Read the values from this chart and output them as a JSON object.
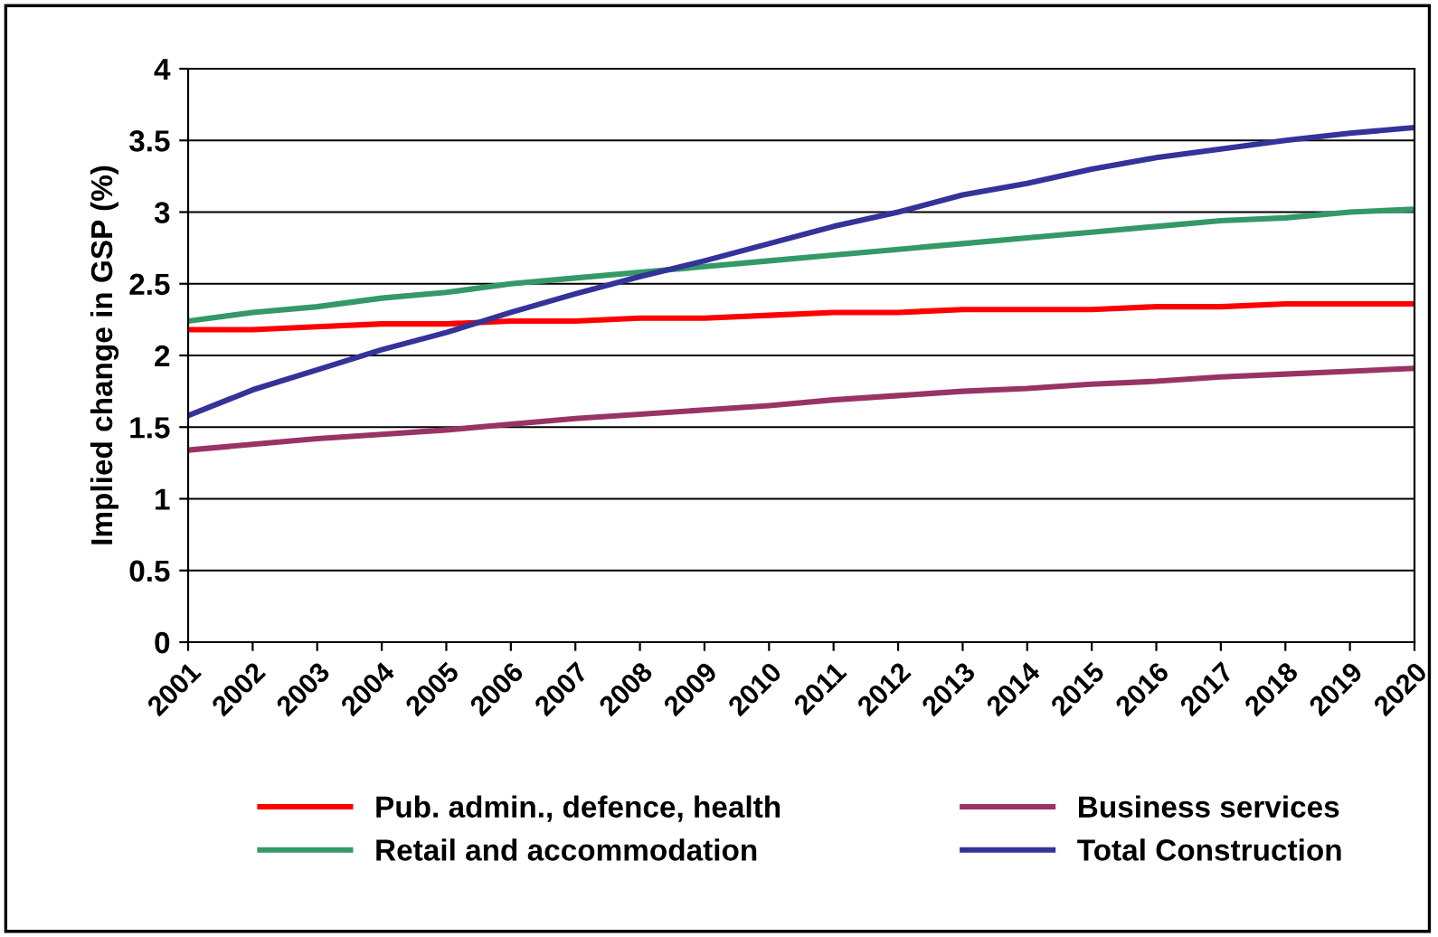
{
  "chart_data": {
    "type": "line",
    "ylabel": "Implied change in GSP (%)",
    "categories": [
      "2001",
      "2002",
      "2003",
      "2004",
      "2005",
      "2006",
      "2007",
      "2008",
      "2009",
      "2010",
      "2011",
      "2012",
      "2013",
      "2014",
      "2015",
      "2016",
      "2017",
      "2018",
      "2019",
      "2020"
    ],
    "series": [
      {
        "name": "Pub. admin., defence, health",
        "color": "#ff0000",
        "values": [
          2.18,
          2.18,
          2.2,
          2.22,
          2.22,
          2.24,
          2.24,
          2.26,
          2.26,
          2.28,
          2.3,
          2.3,
          2.32,
          2.32,
          2.32,
          2.34,
          2.34,
          2.36,
          2.36,
          2.36
        ]
      },
      {
        "name": "Retail and accommodation",
        "color": "#339966",
        "values": [
          2.24,
          2.3,
          2.34,
          2.4,
          2.44,
          2.5,
          2.54,
          2.58,
          2.62,
          2.66,
          2.7,
          2.74,
          2.78,
          2.82,
          2.86,
          2.9,
          2.94,
          2.96,
          3.0,
          3.02
        ]
      },
      {
        "name": "Business services",
        "color": "#993366",
        "values": [
          1.34,
          1.38,
          1.42,
          1.45,
          1.48,
          1.52,
          1.56,
          1.59,
          1.62,
          1.65,
          1.69,
          1.72,
          1.75,
          1.77,
          1.8,
          1.82,
          1.85,
          1.87,
          1.89,
          1.91
        ]
      },
      {
        "name": "Total Construction",
        "color": "#333399",
        "values": [
          1.58,
          1.76,
          1.9,
          2.04,
          2.16,
          2.3,
          2.43,
          2.55,
          2.66,
          2.78,
          2.9,
          3.0,
          3.12,
          3.2,
          3.3,
          3.38,
          3.44,
          3.5,
          3.55,
          3.59
        ]
      }
    ],
    "ylim": [
      0,
      4
    ],
    "yticks": [
      0,
      0.5,
      1,
      1.5,
      2,
      2.5,
      3,
      3.5,
      4
    ],
    "grid": "y",
    "legend": "bottom",
    "marker": "none",
    "line_style": "solid"
  }
}
